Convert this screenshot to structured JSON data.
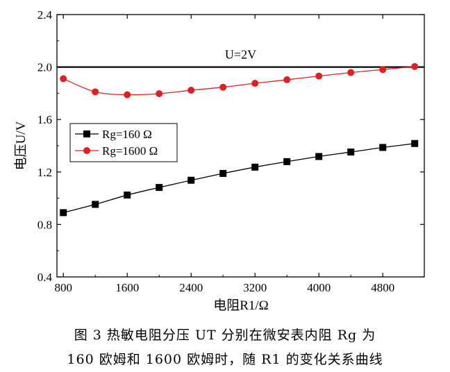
{
  "chart_data": {
    "type": "line",
    "xlabel": "电阻R1/Ω",
    "ylabel": "电压U/V",
    "xlim": [
      720,
      5320
    ],
    "ylim": [
      0.4,
      2.4
    ],
    "x_ticks": [
      "800",
      "1600",
      "2400",
      "3200",
      "4000",
      "4800"
    ],
    "y_ticks": [
      "0.4",
      "0.8",
      "1.2",
      "1.6",
      "2.0",
      "2.4"
    ],
    "reference_line": {
      "y": 2.0,
      "label": "U=2V"
    },
    "x": [
      800,
      1200,
      1600,
      2000,
      2400,
      2800,
      3200,
      3600,
      4000,
      4400,
      4800,
      5200
    ],
    "series": [
      {
        "name": "Rg=160 Ω",
        "marker": "square",
        "color": "#000000",
        "values": [
          0.89,
          0.953,
          1.024,
          1.082,
          1.137,
          1.189,
          1.237,
          1.279,
          1.318,
          1.352,
          1.387,
          1.417
        ]
      },
      {
        "name": "Rg=1600 Ω",
        "marker": "circle",
        "color": "#e02020",
        "values": [
          1.911,
          1.811,
          1.789,
          1.797,
          1.823,
          1.846,
          1.876,
          1.903,
          1.931,
          1.958,
          1.981,
          2.004
        ]
      }
    ],
    "legend_position": "center-left"
  },
  "caption": {
    "line1": "图 3   热敏电阻分压 UT 分别在微安表内阻 Rg 为",
    "line2": "160 欧姆和 1600 欧姆时，随 R1 的变化关系曲线"
  }
}
